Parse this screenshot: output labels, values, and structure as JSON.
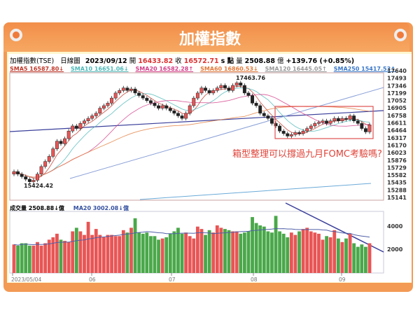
{
  "title": "加權指數",
  "info": {
    "name": "加權指數(TSE)",
    "period": "日線圖",
    "date": "2023/09/12",
    "open_label": "開",
    "open": "16433.82",
    "close_label": "收",
    "close": "16572.71",
    "unit": "s 點",
    "vol_label": "量",
    "vol": "2508.88",
    "vol_unit": "億",
    "change": "+139.76 (+0.85%)"
  },
  "sma": [
    {
      "text": "SMA5 16587.80↓",
      "color": "#c0392b"
    },
    {
      "text": "SMA10 16651.06↓",
      "color": "#4fb8b8"
    },
    {
      "text": "SMA20 16582.28↑",
      "color": "#d4408a"
    },
    {
      "text": "SMA60 16860.53↓",
      "color": "#e27a3a"
    },
    {
      "text": "SMA120 16445.05↑",
      "color": "#999999"
    },
    {
      "text": "SMA250 15417.53↑",
      "color": "#3a78c8"
    }
  ],
  "volume_info": {
    "label": "成交量 2508.88↓億",
    "ma": "MA20 3002.08↓億"
  },
  "annotation": "箱型整理可以撐過九月FOMC考驗嗎?",
  "chart_data": {
    "type": "candlestick",
    "price_ticks": [
      "17640",
      "17493",
      "17346",
      "17199",
      "17052",
      "16905",
      "16758",
      "16611",
      "16464",
      "16317",
      "16170",
      "16023",
      "15876",
      "15729",
      "15582",
      "15435",
      "15288",
      "15141"
    ],
    "ylim": [
      15141,
      17640
    ],
    "volume_ticks": [
      "4000",
      "2000"
    ],
    "x_ticks": [
      "2023/05/04",
      "06",
      "07",
      "08",
      "09"
    ],
    "high_label": "17463.76",
    "low_label": "15424.42",
    "closes": [
      15650,
      15600,
      15550,
      15500,
      15450,
      15480,
      15600,
      15750,
      15850,
      15950,
      16100,
      16250,
      16200,
      16300,
      16450,
      16550,
      16500,
      16600,
      16650,
      16700,
      16750,
      16800,
      16900,
      16950,
      17000,
      17100,
      17200,
      17250,
      17300,
      17250,
      17280,
      17200,
      17150,
      17100,
      17050,
      17000,
      16950,
      16900,
      16950,
      16900,
      16850,
      16800,
      16750,
      16700,
      16800,
      16950,
      17100,
      17200,
      17300,
      17250,
      17200,
      17250,
      17300,
      17350,
      17300,
      17250,
      17350,
      17400,
      17350,
      17200,
      17150,
      17000,
      16950,
      16800,
      16750,
      16700,
      16600,
      16550,
      16450,
      16400,
      16350,
      16380,
      16420,
      16400,
      16450,
      16500,
      16550,
      16600,
      16620,
      16650,
      16600,
      16650,
      16700,
      16650,
      16700,
      16680,
      16750,
      16650,
      16600,
      16500,
      16433,
      16573
    ],
    "volumes": [
      2400,
      2300,
      2500,
      2500,
      2300,
      2300,
      2600,
      2300,
      2500,
      2800,
      3000,
      3300,
      2800,
      2700,
      2600,
      3500,
      3800,
      3500,
      3200,
      4300,
      3200,
      3700,
      3200,
      3000,
      3200,
      3200,
      3100,
      3100,
      3600,
      3400,
      3800,
      4600,
      3400,
      3300,
      3400,
      3100,
      3100,
      2800,
      2900,
      3000,
      3300,
      3500,
      3800,
      3300,
      3400,
      3100,
      2900,
      3900,
      3700,
      3200,
      3600,
      3400,
      4000,
      3800,
      3700,
      3600,
      3500,
      3500,
      3300,
      3400,
      3500,
      4700,
      4200,
      4000,
      3900,
      3500,
      3400,
      4800,
      3500,
      3300,
      3000,
      3400,
      3200,
      3500,
      3700,
      3800,
      3500,
      3400,
      3300,
      2800,
      3100,
      3000,
      3600,
      2900,
      2600,
      2900,
      3300,
      2500,
      2200,
      2400,
      2200,
      2500
    ]
  }
}
